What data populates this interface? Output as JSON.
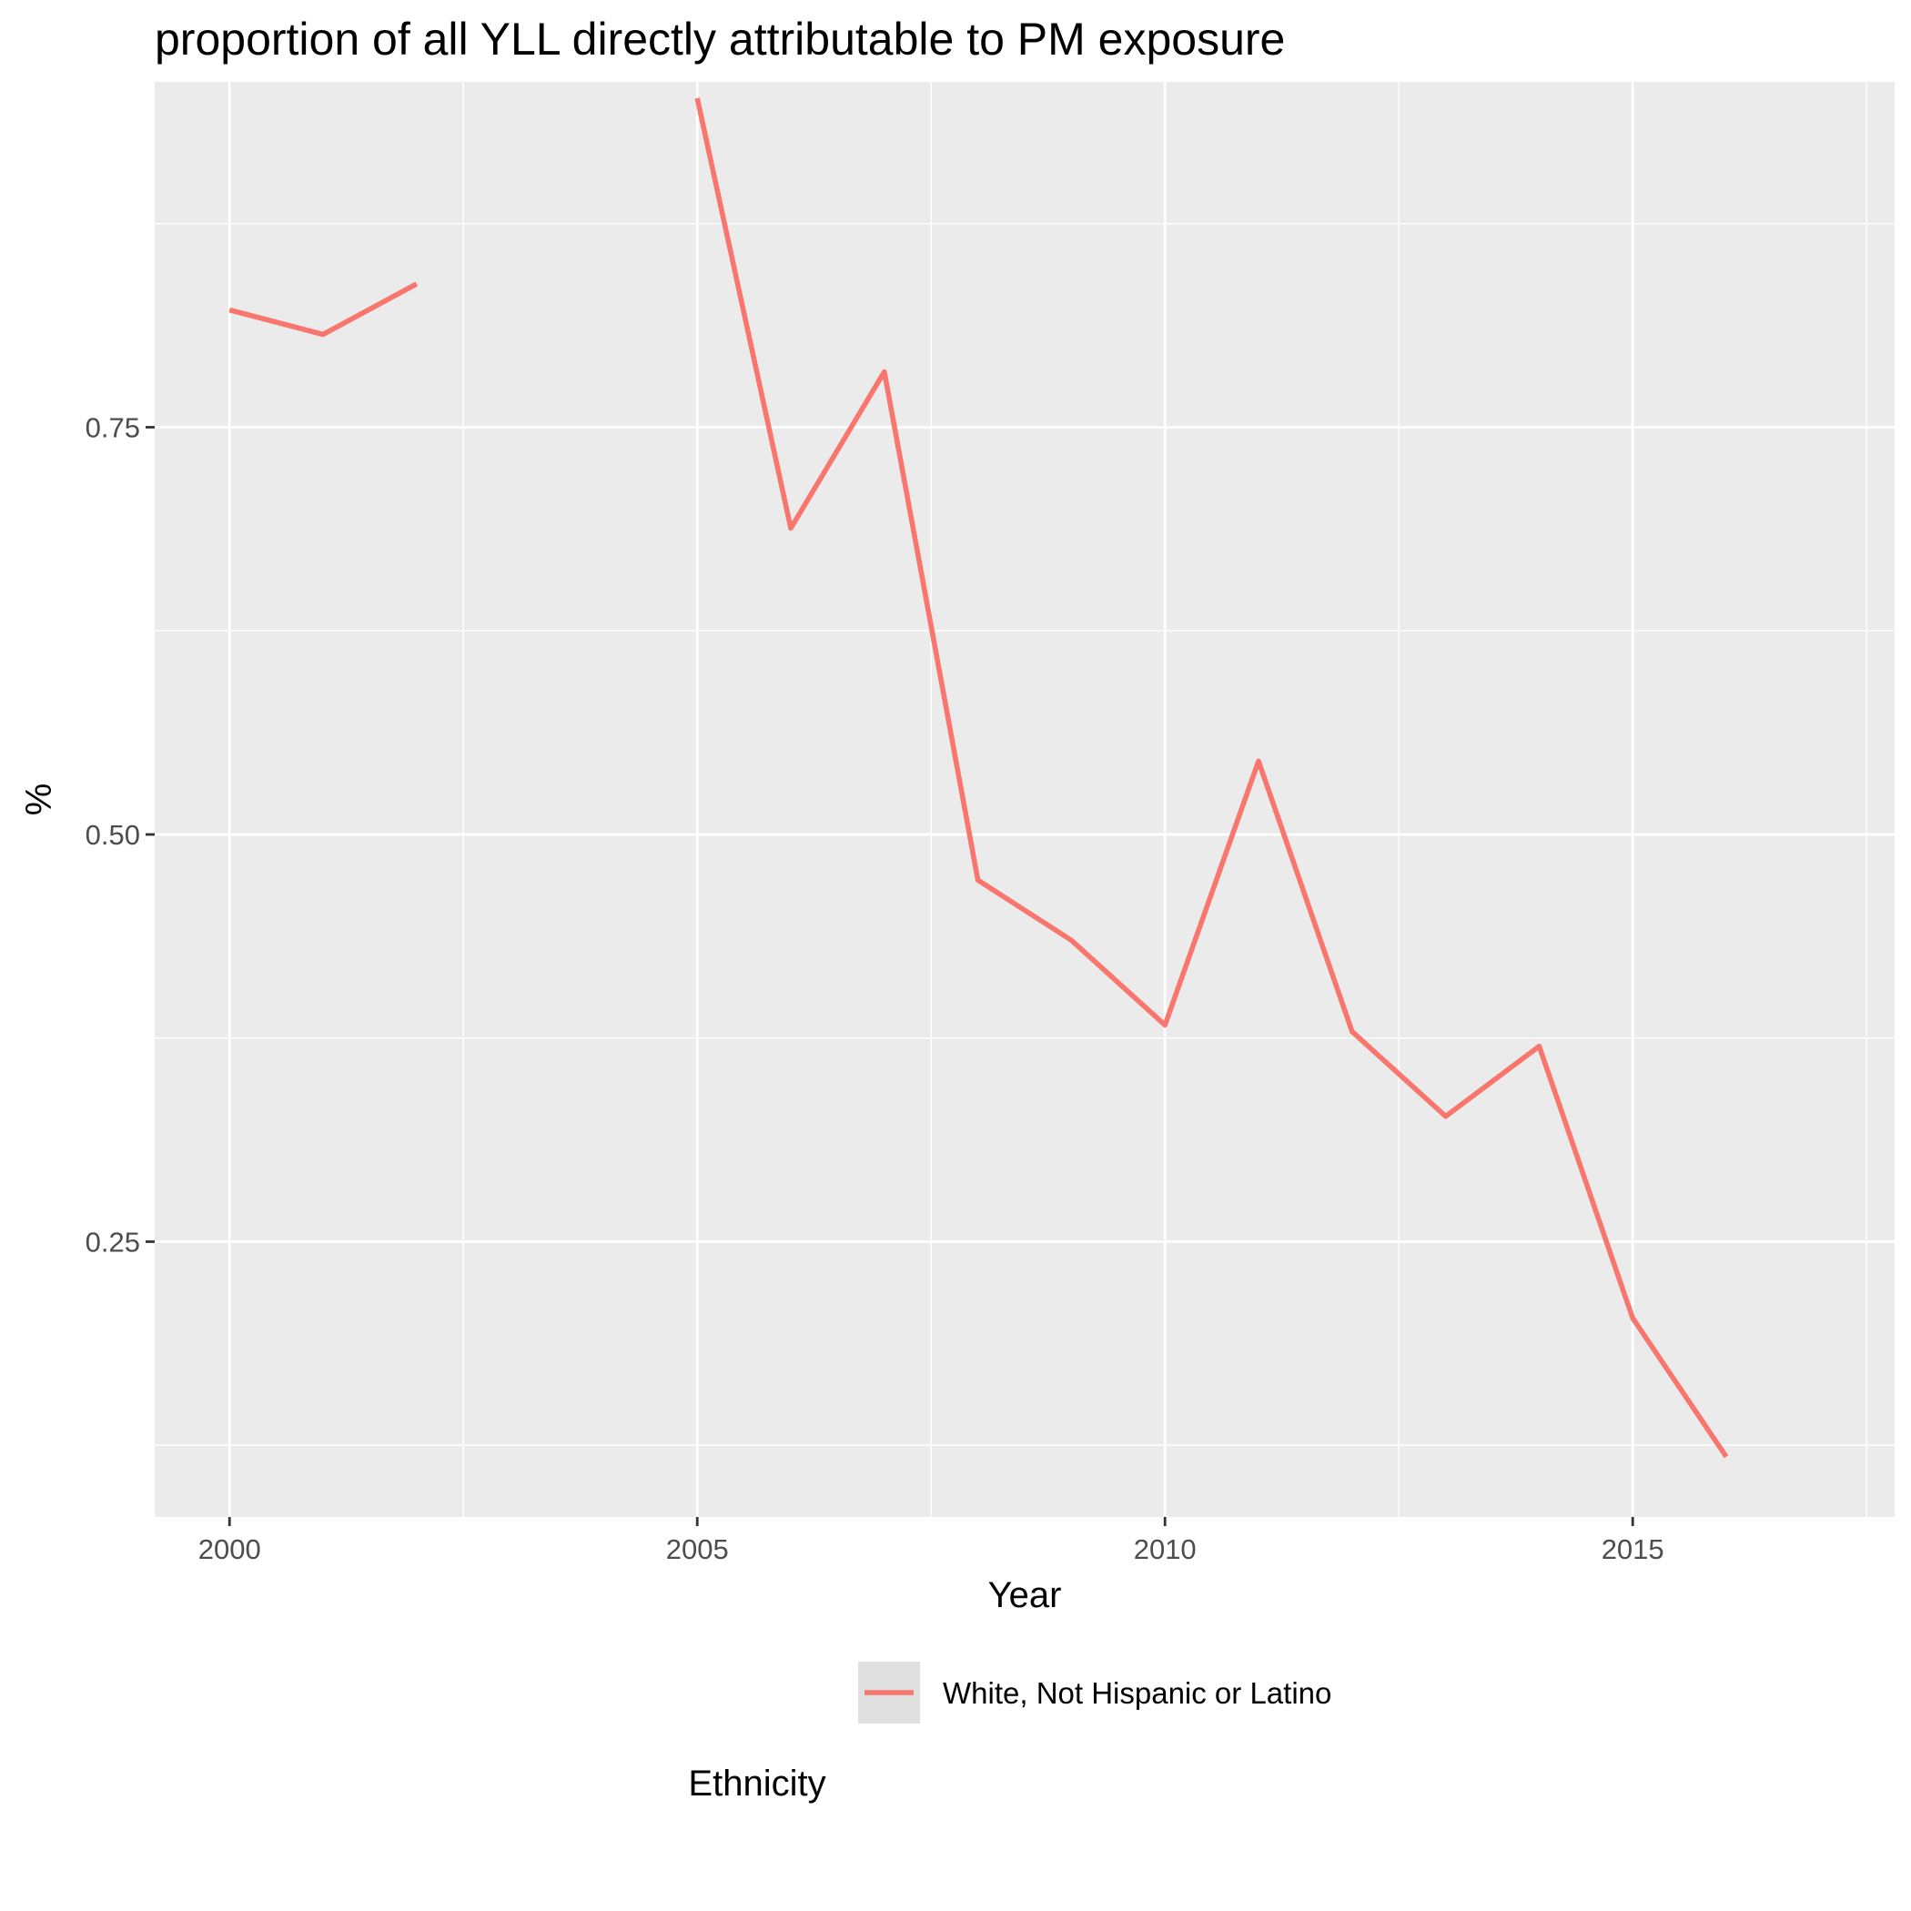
{
  "chart_data": {
    "type": "line",
    "title": "proportion of all YLL directly attributable to PM exposure",
    "xlabel": "Year",
    "ylabel": "%",
    "xlim": [
      1999.2,
      2017.8
    ],
    "ylim": [
      0.081,
      0.962
    ],
    "x_ticks": [
      2000,
      2005,
      2010,
      2015
    ],
    "x_tick_labels": [
      "2000",
      "2005",
      "2010",
      "2015"
    ],
    "x_minor_ticks": [
      2002.5,
      2007.5,
      2012.5,
      2017.5
    ],
    "y_ticks": [
      0.25,
      0.5,
      0.75
    ],
    "y_tick_labels": [
      "0.25",
      "0.50",
      "0.75"
    ],
    "y_minor_ticks": [
      0.125,
      0.375,
      0.625,
      0.875
    ],
    "grid": true,
    "legend_position": "bottom",
    "legend_title": "Ethnicity",
    "colors": {
      "panel": "#ebebeb",
      "grid": "#ffffff",
      "series": "#f8766d",
      "legend_key": "#e0e0e0"
    },
    "series": [
      {
        "name": "White, Not Hispanic or Latino",
        "points": [
          {
            "x": 2000,
            "y": 0.822
          },
          {
            "x": 2001,
            "y": 0.807
          },
          {
            "x": 2002,
            "y": 0.838
          },
          {
            "x": 2003,
            "y": null
          },
          {
            "x": 2004,
            "y": null
          },
          {
            "x": 2005,
            "y": 0.952
          },
          {
            "x": 2006,
            "y": 0.688
          },
          {
            "x": 2007,
            "y": 0.784
          },
          {
            "x": 2008,
            "y": 0.472
          },
          {
            "x": 2009,
            "y": 0.435
          },
          {
            "x": 2010,
            "y": 0.383
          },
          {
            "x": 2011,
            "y": 0.545
          },
          {
            "x": 2012,
            "y": 0.379
          },
          {
            "x": 2013,
            "y": 0.327
          },
          {
            "x": 2014,
            "y": 0.37
          },
          {
            "x": 2015,
            "y": 0.203
          },
          {
            "x": 2016,
            "y": 0.118
          }
        ]
      }
    ]
  }
}
